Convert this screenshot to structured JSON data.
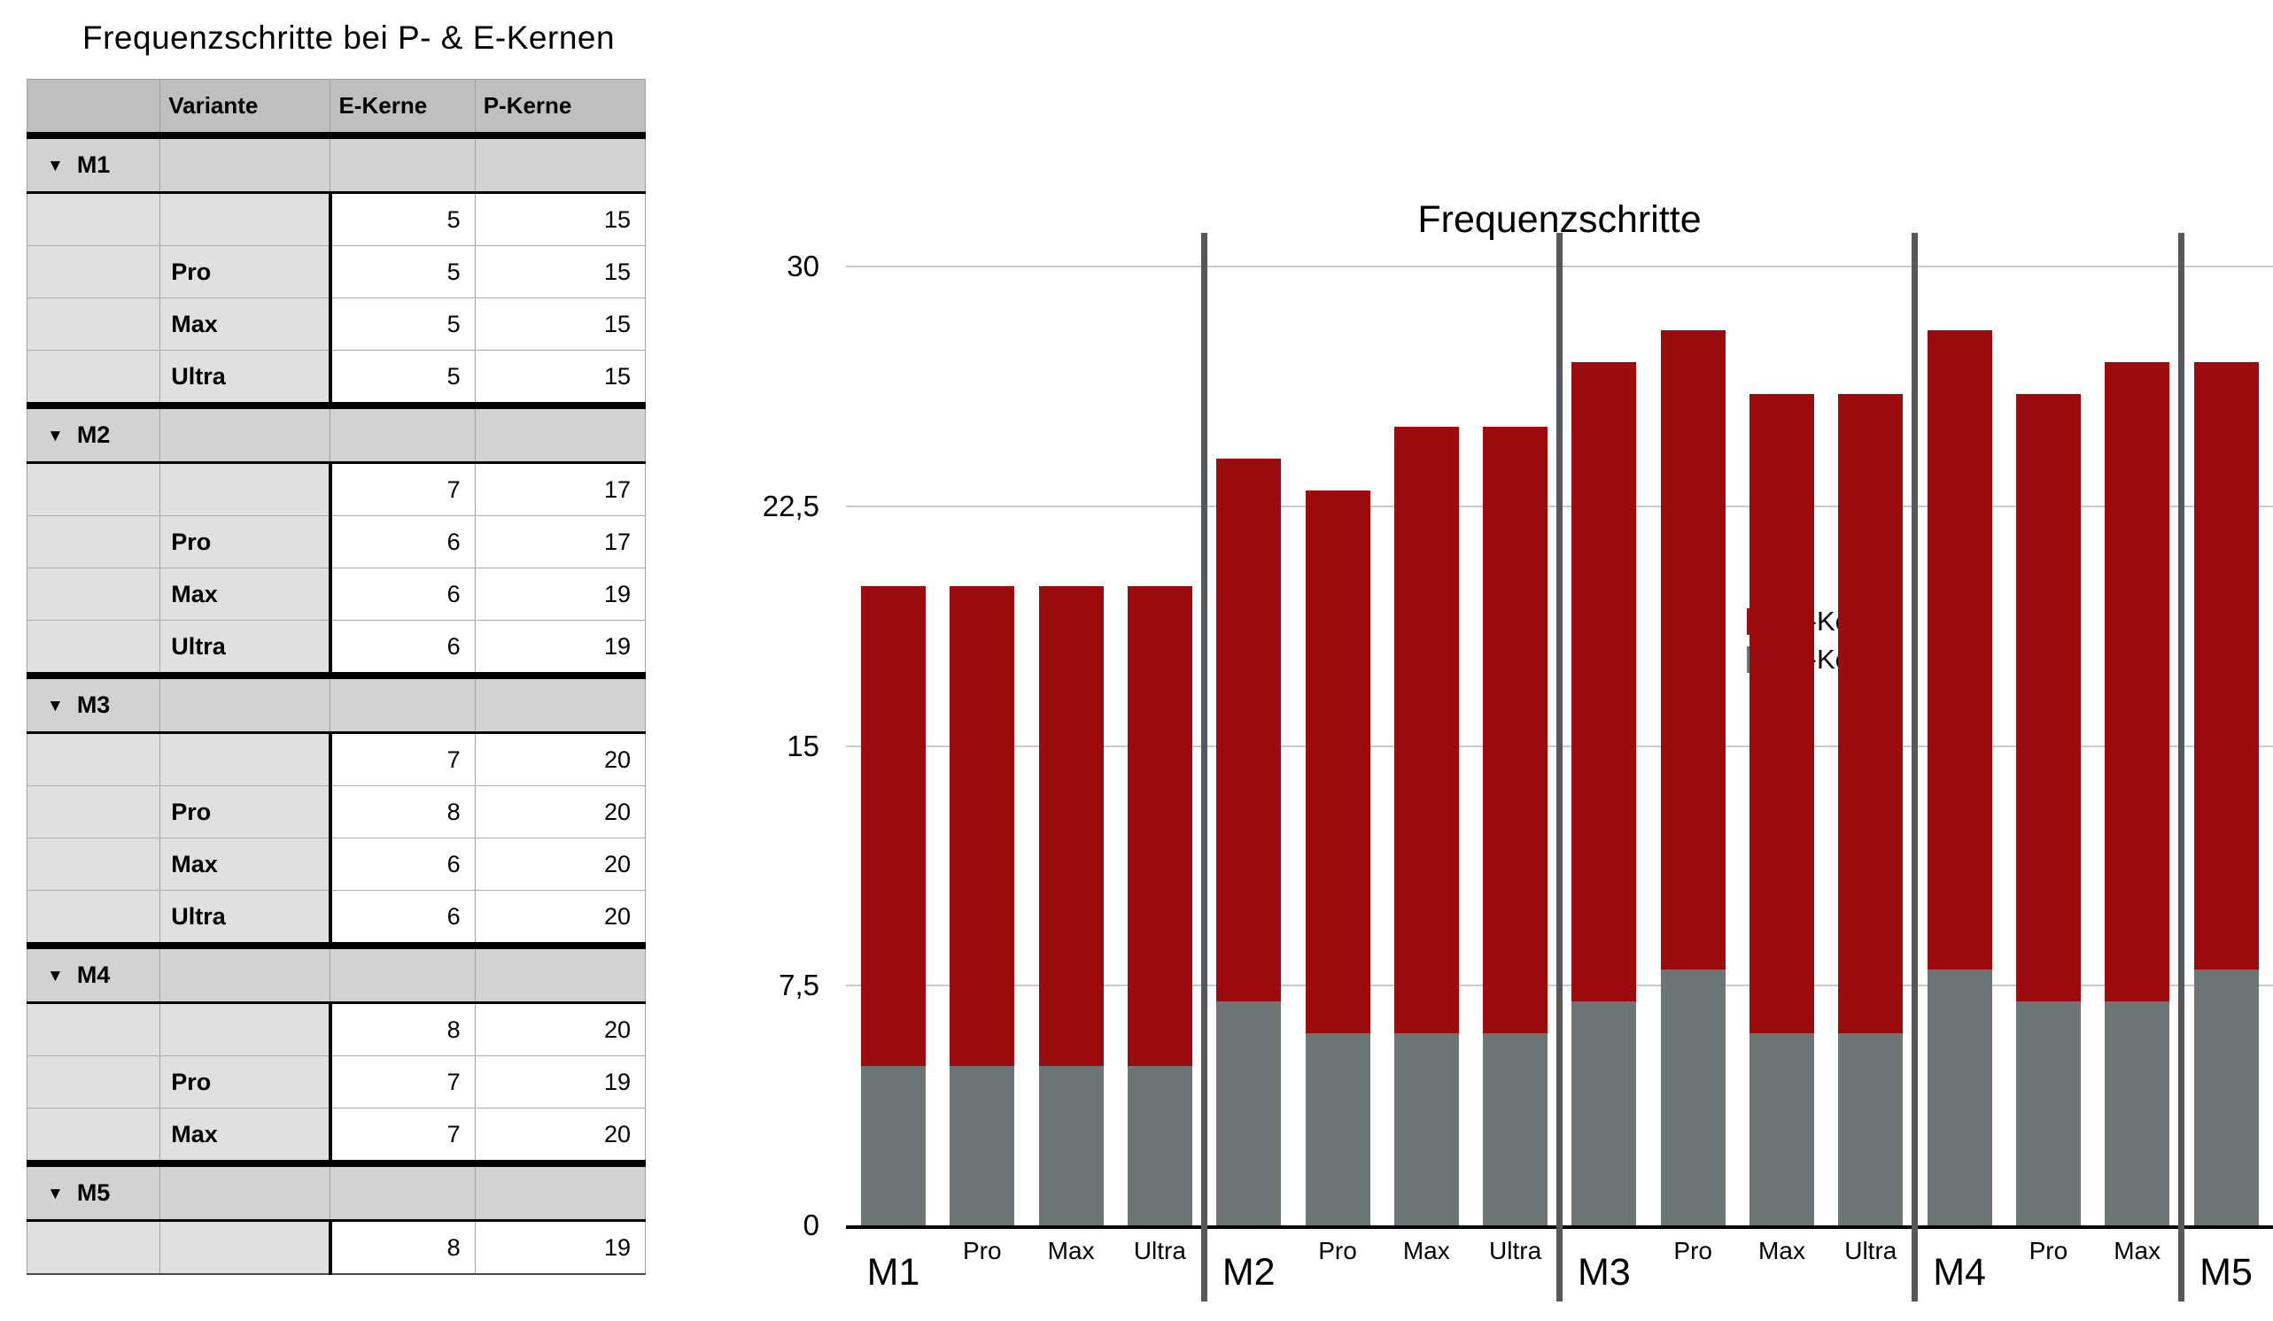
{
  "sheet": {
    "title": "Frequenzschritte bei P- & E-Kernen"
  },
  "table": {
    "disclosure_icon": "▼",
    "headers": {
      "col1": "",
      "variante": "Variante",
      "e": "E-Kerne",
      "p": "P-Kerne"
    },
    "groups": [
      {
        "name": "M1",
        "rows": [
          {
            "variante": "",
            "e": "5",
            "p": "15"
          },
          {
            "variante": "Pro",
            "e": "5",
            "p": "15"
          },
          {
            "variante": "Max",
            "e": "5",
            "p": "15"
          },
          {
            "variante": "Ultra",
            "e": "5",
            "p": "15"
          }
        ]
      },
      {
        "name": "M2",
        "rows": [
          {
            "variante": "",
            "e": "7",
            "p": "17"
          },
          {
            "variante": "Pro",
            "e": "6",
            "p": "17"
          },
          {
            "variante": "Max",
            "e": "6",
            "p": "19"
          },
          {
            "variante": "Ultra",
            "e": "6",
            "p": "19"
          }
        ]
      },
      {
        "name": "M3",
        "rows": [
          {
            "variante": "",
            "e": "7",
            "p": "20"
          },
          {
            "variante": "Pro",
            "e": "8",
            "p": "20"
          },
          {
            "variante": "Max",
            "e": "6",
            "p": "20"
          },
          {
            "variante": "Ultra",
            "e": "6",
            "p": "20"
          }
        ]
      },
      {
        "name": "M4",
        "rows": [
          {
            "variante": "",
            "e": "8",
            "p": "20"
          },
          {
            "variante": "Pro",
            "e": "7",
            "p": "19"
          },
          {
            "variante": "Max",
            "e": "7",
            "p": "20"
          }
        ]
      },
      {
        "name": "M5",
        "rows": [
          {
            "variante": "",
            "e": "8",
            "p": "19"
          }
        ]
      }
    ]
  },
  "chart_data": {
    "type": "bar",
    "stacked": true,
    "title": "Frequenzschritte",
    "categories": [
      "M1",
      "Pro",
      "Max",
      "Ultra",
      "M2",
      "Pro",
      "Max",
      "Ultra",
      "M3",
      "Pro",
      "Max",
      "Ultra",
      "M4",
      "Pro",
      "Max",
      "M5"
    ],
    "category_kinds": [
      "group",
      "variant",
      "variant",
      "variant",
      "group",
      "variant",
      "variant",
      "variant",
      "group",
      "variant",
      "variant",
      "variant",
      "group",
      "variant",
      "variant",
      "group"
    ],
    "series": [
      {
        "name": "P-Kerne",
        "color": "#9c0c0d",
        "values": [
          15,
          15,
          15,
          15,
          17,
          17,
          19,
          19,
          20,
          20,
          20,
          20,
          20,
          19,
          20,
          19
        ]
      },
      {
        "name": "E-Kerne",
        "color": "#6d7676",
        "values": [
          5,
          5,
          5,
          5,
          7,
          6,
          6,
          6,
          7,
          8,
          6,
          6,
          8,
          7,
          7,
          8
        ]
      }
    ],
    "totals": [
      20,
      20,
      20,
      20,
      24,
      23,
      25,
      25,
      27,
      28,
      26,
      26,
      28,
      26,
      27,
      27
    ],
    "ylim": [
      0,
      30
    ],
    "yticks": [
      {
        "value": 30,
        "label": "30"
      },
      {
        "value": 22.5,
        "label": "22,5"
      },
      {
        "value": 15,
        "label": "15"
      },
      {
        "value": 7.5,
        "label": "7,5"
      },
      {
        "value": 0,
        "label": "0"
      }
    ],
    "grid": true,
    "legend_position": "top-left",
    "separator_color": "#58585a",
    "gridline_color": "#c9c9c9",
    "group_separators_after_index": [
      3,
      7,
      11,
      14
    ]
  }
}
